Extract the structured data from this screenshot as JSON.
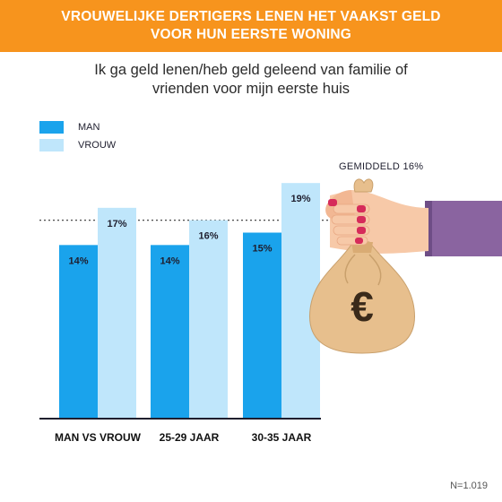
{
  "header": {
    "title_line1": "VROUWELIJKE DERTIGERS LENEN HET VAAKST GELD",
    "title_line2": "VOOR HUN EERSTE WONING"
  },
  "subtitle": {
    "line1": "Ik ga geld lenen/heb geld geleend van familie of",
    "line2": "vrienden voor mijn eerste huis"
  },
  "colors": {
    "banner": "#f7941d",
    "man": "#1aa3ec",
    "vrouw": "#bfe6fb",
    "sleeve": "#8a64a0",
    "bag": "#e7bf8d"
  },
  "illustration": {
    "icon": "hand-holding-money-bag-icon",
    "currency_symbol": "€"
  },
  "footnote": "N=1.019",
  "chart_data": {
    "type": "bar",
    "categories": [
      "MAN VS VROUW",
      "25-29 JAAR",
      "30-35 JAAR"
    ],
    "series": [
      {
        "name": "MAN",
        "values": [
          14,
          14,
          15
        ],
        "labels": [
          "14%",
          "14%",
          "15%"
        ]
      },
      {
        "name": "VROUW",
        "values": [
          17,
          16,
          19
        ],
        "labels": [
          "17%",
          "16%",
          "19%"
        ]
      }
    ],
    "reference_line": {
      "label": "GEMIDDELD 16%",
      "value": 16
    },
    "ylim": [
      0,
      24
    ],
    "legend": "top-left",
    "grid": false
  }
}
